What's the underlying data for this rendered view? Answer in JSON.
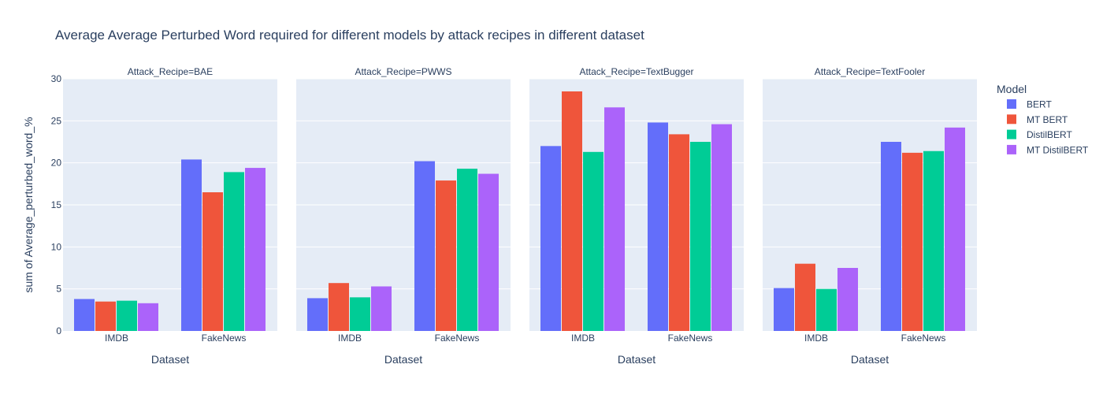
{
  "chart_data": {
    "type": "bar",
    "title": "Average Average Perturbed Word required for different models by attack recipes in different dataset",
    "ylabel": "sum of Average_perturbed_word_%",
    "xlabel": "Dataset",
    "ylim": [
      0,
      30
    ],
    "yticks": [
      0,
      5,
      10,
      15,
      20,
      25,
      30
    ],
    "categories": [
      "IMDB",
      "FakeNews"
    ],
    "legend_title": "Model",
    "legend_position": "right",
    "grid": true,
    "series_colors": {
      "BERT": "#636efa",
      "MT BERT": "#EF553B",
      "DistilBERT": "#00cc96",
      "MT DistilBERT": "#ab63fa"
    },
    "facets": [
      {
        "label": "Attack_Recipe=BAE",
        "series": [
          {
            "name": "BERT",
            "values": [
              3.8,
              20.4
            ]
          },
          {
            "name": "MT BERT",
            "values": [
              3.5,
              16.5
            ]
          },
          {
            "name": "DistilBERT",
            "values": [
              3.6,
              18.9
            ]
          },
          {
            "name": "MT DistilBERT",
            "values": [
              3.3,
              19.4
            ]
          }
        ]
      },
      {
        "label": "Attack_Recipe=PWWS",
        "series": [
          {
            "name": "BERT",
            "values": [
              3.9,
              20.2
            ]
          },
          {
            "name": "MT BERT",
            "values": [
              5.7,
              17.9
            ]
          },
          {
            "name": "DistilBERT",
            "values": [
              4.0,
              19.3
            ]
          },
          {
            "name": "MT DistilBERT",
            "values": [
              5.3,
              18.7
            ]
          }
        ]
      },
      {
        "label": "Attack_Recipe=TextBugger",
        "series": [
          {
            "name": "BERT",
            "values": [
              22.0,
              24.8
            ]
          },
          {
            "name": "MT BERT",
            "values": [
              28.5,
              23.4
            ]
          },
          {
            "name": "DistilBERT",
            "values": [
              21.3,
              22.5
            ]
          },
          {
            "name": "MT DistilBERT",
            "values": [
              26.6,
              24.6
            ]
          }
        ]
      },
      {
        "label": "Attack_Recipe=TextFooler",
        "series": [
          {
            "name": "BERT",
            "values": [
              5.1,
              22.5
            ]
          },
          {
            "name": "MT BERT",
            "values": [
              8.0,
              21.2
            ]
          },
          {
            "name": "DistilBERT",
            "values": [
              5.0,
              21.4
            ]
          },
          {
            "name": "MT DistilBERT",
            "values": [
              7.5,
              24.2
            ]
          }
        ]
      }
    ]
  }
}
